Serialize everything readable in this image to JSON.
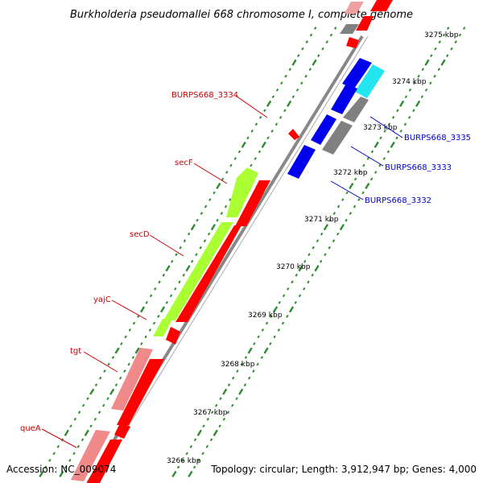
{
  "title": "Burkholderia pseudomallei 668 chromosome I, complete genome",
  "footer": {
    "accession": "Accession: NC_009074",
    "stats": "Topology: circular; Length: 3,912,947 bp; Genes: 4,000"
  },
  "colors": {
    "backbone": "#888888",
    "tick": "#2e8b2e",
    "forward_gene": "#ff0000",
    "forward_pseudo": "#f08a8a",
    "reverse_gene": "#0000ee",
    "reverse_other": "#808080",
    "highlight": "#aaff33",
    "cyan": "#22e5f0",
    "left_label": "#cc0000",
    "right_label": "#0000cc"
  },
  "scale": {
    "unit": "kbp",
    "labels": [
      "3266 kbp",
      "3267 kbp",
      "3268 kbp",
      "3269 kbp",
      "3270 kbp",
      "3271 kbp",
      "3272 kbp",
      "3273 kbp",
      "3274 kbp",
      "3275 kbp"
    ]
  },
  "left_labels": [
    {
      "text": "BURPS668_3334"
    },
    {
      "text": "secF"
    },
    {
      "text": "secD"
    },
    {
      "text": "yajC"
    },
    {
      "text": "tgt"
    },
    {
      "text": "queA"
    }
  ],
  "right_labels": [
    {
      "text": "BURPS668_3335"
    },
    {
      "text": "BURPS668_3333"
    },
    {
      "text": "BURPS668_3332"
    }
  ]
}
